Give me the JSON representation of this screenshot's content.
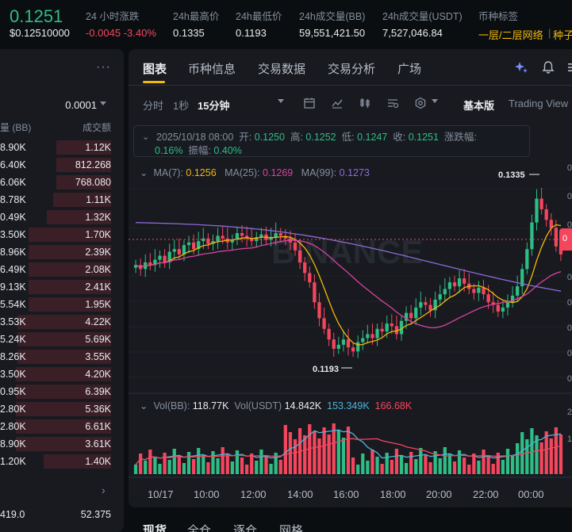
{
  "ticker": {
    "price": "0.1251",
    "price_usd": "$0.12510000",
    "change_label": "24 小时涨跌",
    "change_value": "-0.0045 -3.40%",
    "high_label": "24h最高价",
    "high_value": "0.1335",
    "low_label": "24h最低价",
    "low_value": "0.1193",
    "vol_bb_label": "24h成交量(BB)",
    "vol_bb_value": "59,551,421.50",
    "vol_usdt_label": "24h成交量(USDT)",
    "vol_usdt_value": "7,527,046.84",
    "tag_label": "币种标签",
    "tag_value": "一层/二层网络",
    "tag_value2": "种子"
  },
  "orderbook": {
    "more": "···",
    "precision": "0.0001",
    "col_amount": "量 (BB)",
    "col_total": "成交额",
    "rows": [
      {
        "amount": "8.90K",
        "total": "1.12K",
        "depth": 0.49
      },
      {
        "amount": "6.40K",
        "total": "812.268",
        "depth": 0.49
      },
      {
        "amount": "6.06K",
        "total": "768.080",
        "depth": 0.49
      },
      {
        "amount": "8.78K",
        "total": "1.11K",
        "depth": 0.52
      },
      {
        "amount": "0.49K",
        "total": "1.32K",
        "depth": 0.58
      },
      {
        "amount": "3.50K",
        "total": "1.70K",
        "depth": 0.74
      },
      {
        "amount": "8.96K",
        "total": "2.39K",
        "depth": 0.74
      },
      {
        "amount": "6.49K",
        "total": "2.08K",
        "depth": 0.74
      },
      {
        "amount": "9.13K",
        "total": "2.41K",
        "depth": 0.74
      },
      {
        "amount": "5.54K",
        "total": "1.95K",
        "depth": 0.74
      },
      {
        "amount": "3.53K",
        "total": "4.22K",
        "depth": 0.84
      },
      {
        "amount": "5.24K",
        "total": "5.69K",
        "depth": 0.84
      },
      {
        "amount": "8.26K",
        "total": "3.55K",
        "depth": 0.84
      },
      {
        "amount": "3.50K",
        "total": "4.20K",
        "depth": 0.86
      },
      {
        "amount": "0.95K",
        "total": "6.39K",
        "depth": 0.86
      },
      {
        "amount": "2.80K",
        "total": "5.36K",
        "depth": 0.86
      },
      {
        "amount": "2.80K",
        "total": "6.61K",
        "depth": 0.86
      },
      {
        "amount": "8.90K",
        "total": "3.61K",
        "depth": 0.86
      },
      {
        "amount": "1.20K",
        "total": "1.40K",
        "depth": 0.61
      }
    ],
    "bottom_left": "419.0",
    "bottom_right": "52.375"
  },
  "tabs": [
    {
      "label": "图表",
      "active": true
    },
    {
      "label": "币种信息",
      "active": false
    },
    {
      "label": "交易数据",
      "active": false
    },
    {
      "label": "交易分析",
      "active": false
    },
    {
      "label": "广场",
      "active": false
    }
  ],
  "toolbar": {
    "time_label": "分时",
    "one_sec": "1秒",
    "interval": "15分钟",
    "basic": "基本版",
    "tradingview": "Trading View"
  },
  "ohlc": {
    "date": "2025/10/18 08:00",
    "open_label": "开:",
    "open": "0.1250",
    "high_label": "高:",
    "high": "0.1252",
    "low_label": "低:",
    "low": "0.1247",
    "close_label": "收:",
    "close": "0.1251",
    "change_label": "涨跌幅:",
    "change": "0.16%",
    "amp_label": "振幅:",
    "amp": "0.40%"
  },
  "ma": {
    "ma7_label": "MA(7):",
    "ma7": "0.1256",
    "ma25_label": "MA(25):",
    "ma25": "0.1269",
    "ma99_label": "MA(99):",
    "ma99": "0.1273"
  },
  "vol": {
    "bb_label": "Vol(BB):",
    "bb": "118.77K",
    "usdt_label": "Vol(USDT)",
    "usdt": "14.842K",
    "v1": "153.349K",
    "v2": "166.68K"
  },
  "chart_labels": {
    "high_mark": "0.1335",
    "low_mark": "0.1193"
  },
  "x_axis": [
    "10/17",
    "10:00",
    "12:00",
    "14:00",
    "16:00",
    "18:00",
    "20:00",
    "22:00",
    "00:00"
  ],
  "right_axis": [
    "0",
    "0",
    "0",
    "0",
    "0",
    "0",
    "0",
    "0",
    "2",
    "1"
  ],
  "bottom_tabs": [
    "现货",
    "全仓",
    "逐仓",
    "网格"
  ],
  "colors": {
    "up": "#2ebd85",
    "down": "#f6465d",
    "ma7": "#f0b90b",
    "ma25": "#d9429f",
    "ma99": "#8d6bd6",
    "vol_ma1": "#4fb3d9",
    "vol_ma2": "#f6465d",
    "accent": "#f0b90b"
  }
}
